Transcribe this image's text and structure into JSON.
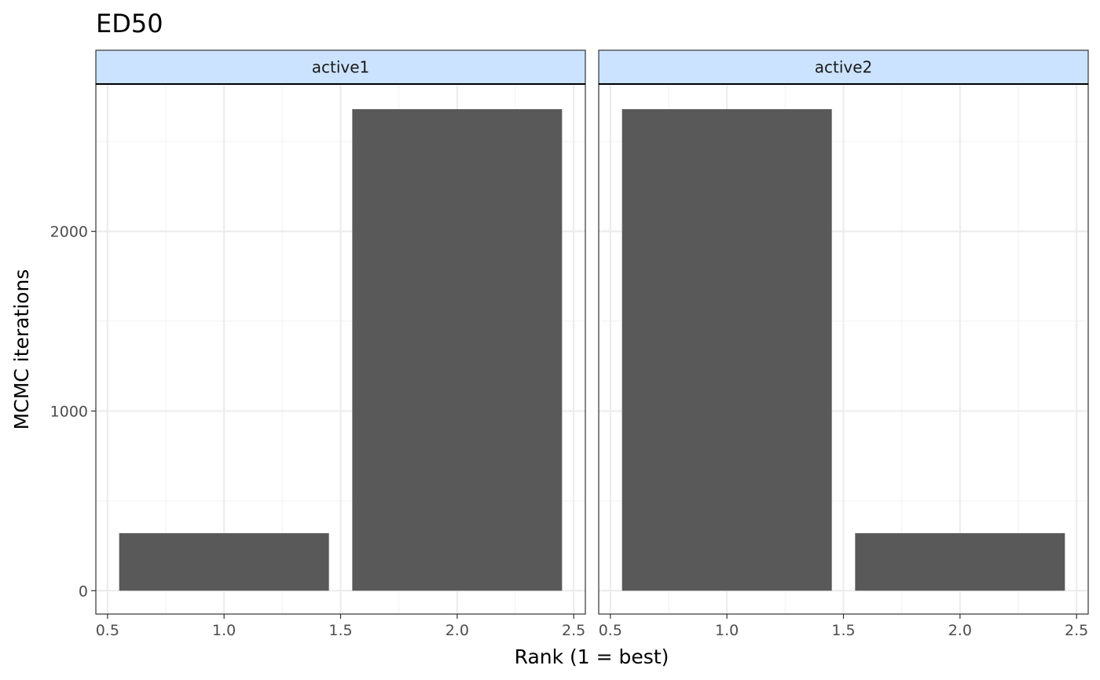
{
  "chart_data": {
    "type": "bar",
    "title": "ED50",
    "xlabel": "Rank (1 = best)",
    "ylabel": "MCMC iterations",
    "xlim": [
      0.45,
      2.55
    ],
    "ylim": [
      -130,
      2820
    ],
    "x_ticks": [
      0.5,
      1.0,
      1.5,
      2.0,
      2.5
    ],
    "x_tick_labels": [
      "0.5",
      "1.0",
      "1.5",
      "2.0",
      "2.5"
    ],
    "y_ticks": [
      0,
      1000,
      2000
    ],
    "y_tick_labels": [
      "0",
      "1000",
      "2000"
    ],
    "grid": true,
    "bar_width": 0.9,
    "bar_color": "#595959",
    "strip_fill": "#cce3ff",
    "panels": [
      {
        "label": "active1",
        "x": [
          1,
          2
        ],
        "values": [
          320,
          2680
        ]
      },
      {
        "label": "active2",
        "x": [
          1,
          2
        ],
        "values": [
          2680,
          320
        ]
      }
    ]
  }
}
